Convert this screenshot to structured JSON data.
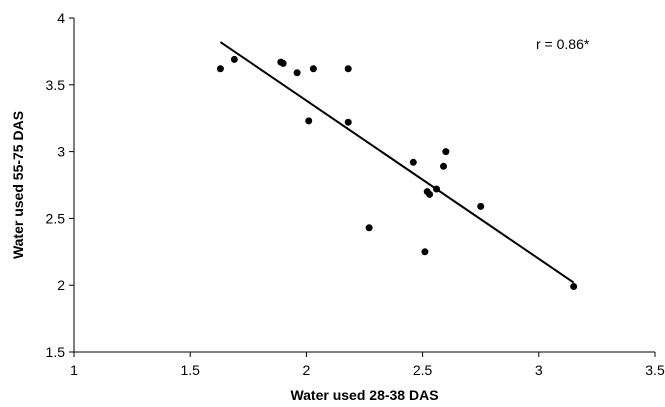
{
  "chart_data": {
    "type": "scatter",
    "title": "",
    "xlabel": "Water used 28-38 DAS",
    "ylabel": "Water used 55-75 DAS",
    "xlim": [
      1,
      3.5
    ],
    "ylim": [
      1.5,
      4
    ],
    "xticks": [
      "1",
      "1.5",
      "2",
      "2.5",
      "3",
      "3.5"
    ],
    "yticks": [
      "1.5",
      "2",
      "2.5",
      "3",
      "3.5",
      "4"
    ],
    "grid": false,
    "legend": "none",
    "annotation": "r = 0.86*",
    "points": [
      {
        "x": 1.63,
        "y": 3.62
      },
      {
        "x": 1.69,
        "y": 3.69
      },
      {
        "x": 1.89,
        "y": 3.67
      },
      {
        "x": 1.9,
        "y": 3.66
      },
      {
        "x": 1.96,
        "y": 3.59
      },
      {
        "x": 2.01,
        "y": 3.23
      },
      {
        "x": 2.03,
        "y": 3.62
      },
      {
        "x": 2.18,
        "y": 3.62
      },
      {
        "x": 2.18,
        "y": 3.22
      },
      {
        "x": 2.27,
        "y": 2.43
      },
      {
        "x": 2.46,
        "y": 2.92
      },
      {
        "x": 2.51,
        "y": 2.25
      },
      {
        "x": 2.52,
        "y": 2.7
      },
      {
        "x": 2.53,
        "y": 2.68
      },
      {
        "x": 2.56,
        "y": 2.72
      },
      {
        "x": 2.59,
        "y": 2.89
      },
      {
        "x": 2.6,
        "y": 3.0
      },
      {
        "x": 2.75,
        "y": 2.59
      },
      {
        "x": 3.15,
        "y": 1.99
      }
    ],
    "trendline": {
      "x": [
        1.63,
        3.15
      ],
      "y": [
        3.82,
        2.02
      ]
    },
    "colors": {
      "points": "#000000",
      "line": "#000000",
      "axis": "#000000"
    }
  }
}
